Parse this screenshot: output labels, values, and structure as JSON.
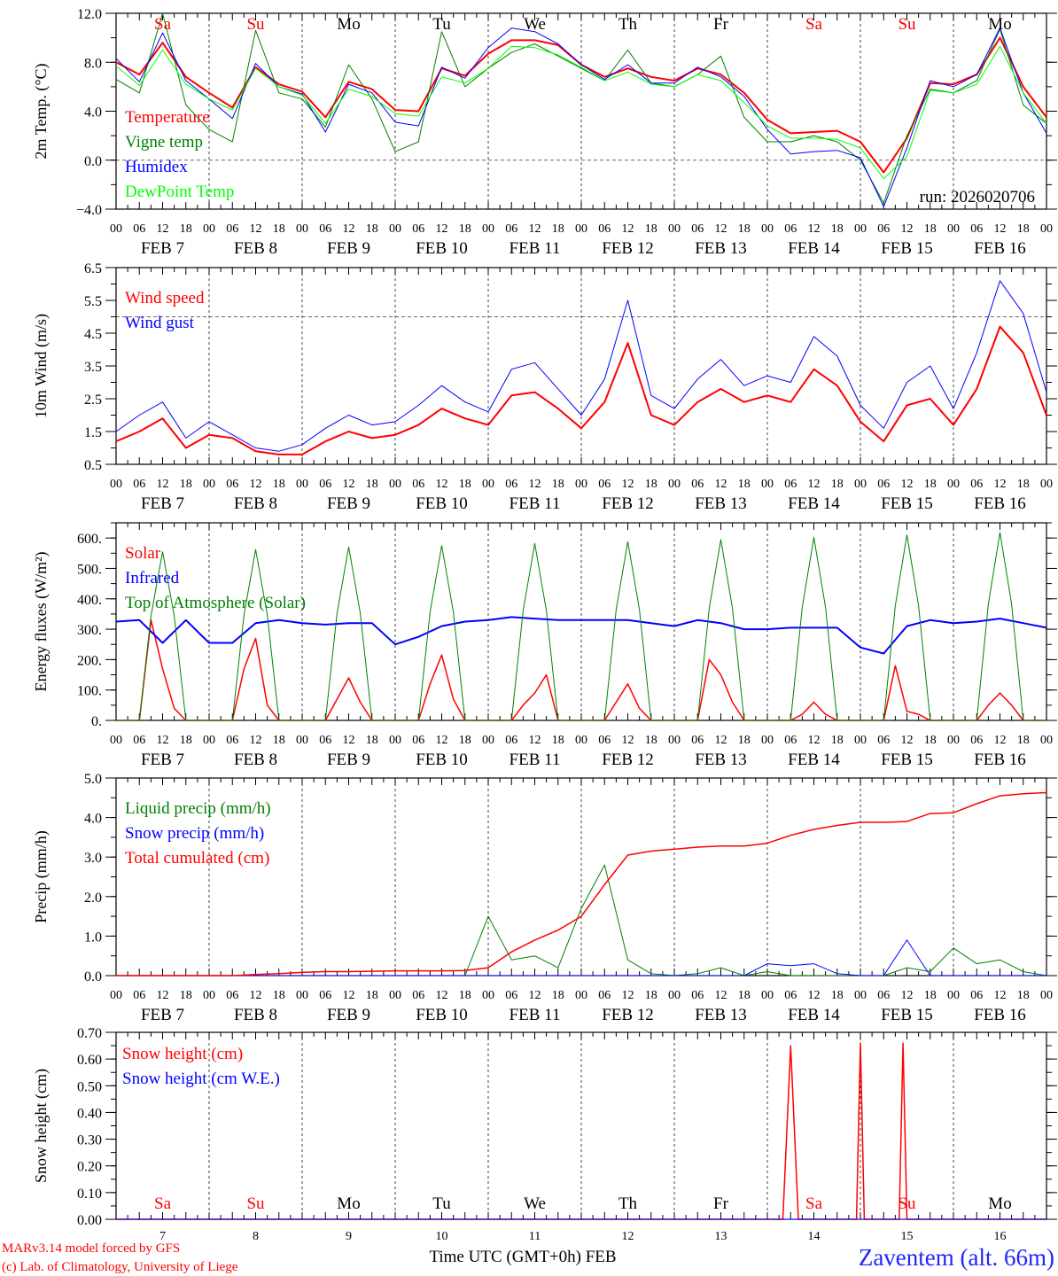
{
  "chart_data": {
    "type": "line",
    "xlabel": "Time UTC (GMT+0h) FEB",
    "x_unit": "hours since FEB 7 00 UTC",
    "xlim": [
      0,
      240
    ],
    "days": [
      "7",
      "8",
      "9",
      "10",
      "11",
      "12",
      "13",
      "14",
      "15",
      "16"
    ],
    "day_labels": [
      "FEB  7",
      "FEB  8",
      "FEB  9",
      "FEB 10",
      "FEB 11",
      "FEB 12",
      "FEB 13",
      "FEB 14",
      "FEB 15",
      "FEB 16"
    ],
    "hour_labels": [
      "00",
      "06",
      "12",
      "18"
    ],
    "weekdays": [
      "Sa",
      "Su",
      "Mo",
      "Tu",
      "We",
      "Th",
      "Fr",
      "Sa",
      "Su",
      "Mo"
    ],
    "weekend_color": "#ff0000",
    "run_label": "run: 2026020706",
    "panels": [
      {
        "ylabel": "2m Temp. (°C)",
        "ylim": [
          -4,
          12
        ],
        "yticks": [
          12,
          8,
          4,
          0,
          -4
        ],
        "ytick_labels": [
          "12.0",
          "8.0",
          "4.0",
          "0.0",
          "−4.0"
        ],
        "minor_step": 2,
        "hlines": [
          0
        ],
        "series": [
          {
            "name": "Temperature",
            "color": "#ff0000",
            "width": 2,
            "x0": 0,
            "step": 6,
            "values": [
              8.0,
              7.0,
              9.6,
              6.8,
              5.5,
              4.3,
              7.6,
              6.2,
              5.6,
              3.5,
              6.4,
              5.8,
              4.1,
              4.0,
              7.5,
              6.9,
              8.7,
              9.8,
              9.8,
              9.4,
              7.8,
              6.8,
              7.5,
              6.8,
              6.5,
              7.5,
              7.0,
              5.5,
              3.3,
              2.2,
              2.3,
              2.4,
              1.5,
              -1.0,
              1.8,
              6.3,
              6.2,
              7.0,
              10.0,
              6.0,
              3.5
            ]
          },
          {
            "name": "Vigne temp",
            "color": "#008000",
            "width": 1,
            "x0": 0,
            "step": 6,
            "values": [
              6.6,
              5.5,
              12.0,
              4.5,
              2.5,
              1.5,
              10.6,
              5.5,
              5.0,
              2.7,
              7.8,
              5.0,
              0.7,
              1.5,
              10.5,
              6.0,
              7.5,
              8.8,
              9.5,
              8.5,
              7.5,
              6.5,
              9.0,
              6.3,
              6.0,
              7.0,
              8.5,
              3.5,
              1.5,
              1.5,
              2.0,
              1.5,
              0.0,
              -3.5,
              2.0,
              5.8,
              5.5,
              6.5,
              10.7,
              4.5,
              3.0
            ]
          },
          {
            "name": "Humidex",
            "color": "#0000ff",
            "width": 1,
            "x0": 0,
            "step": 6,
            "values": [
              8.3,
              6.4,
              10.4,
              6.5,
              5.0,
              3.4,
              7.9,
              6.0,
              5.4,
              2.3,
              6.2,
              5.5,
              3.1,
              2.8,
              7.6,
              6.7,
              9.2,
              10.8,
              10.5,
              9.5,
              7.8,
              6.6,
              7.8,
              6.3,
              6.3,
              7.6,
              6.8,
              5.2,
              2.5,
              0.5,
              0.7,
              0.8,
              0.2,
              -3.8,
              1.0,
              6.5,
              6.0,
              7.0,
              10.8,
              5.5,
              2.2
            ]
          },
          {
            "name": "DewPoint Temp",
            "color": "#00ff00",
            "width": 1,
            "x0": 0,
            "step": 6,
            "values": [
              7.7,
              6.1,
              9.0,
              6.2,
              5.0,
              4.1,
              7.5,
              6.0,
              5.3,
              3.0,
              5.8,
              5.2,
              3.8,
              3.6,
              6.8,
              6.3,
              7.5,
              9.3,
              9.2,
              8.6,
              7.6,
              6.5,
              7.2,
              6.2,
              6.0,
              7.0,
              6.5,
              4.7,
              2.8,
              1.8,
              1.8,
              1.7,
              1.0,
              -1.5,
              0.3,
              5.7,
              5.5,
              6.2,
              9.3,
              5.5,
              3.0
            ]
          }
        ]
      },
      {
        "ylabel": "10m Wind (m/s)",
        "ylim": [
          0.5,
          6.5
        ],
        "yticks": [
          6.5,
          5.5,
          4.5,
          3.5,
          2.5,
          1.5,
          0.5
        ],
        "ytick_labels": [
          "6.5",
          "5.5",
          "4.5",
          "3.5",
          "2.5",
          "1.5",
          "0.5"
        ],
        "minor_step": 0.5,
        "hlines": [
          5.0
        ],
        "series": [
          {
            "name": "Wind speed",
            "color": "#ff0000",
            "width": 2,
            "x0": 0,
            "step": 6,
            "values": [
              1.2,
              1.5,
              1.9,
              1.0,
              1.4,
              1.3,
              0.9,
              0.8,
              0.8,
              1.2,
              1.5,
              1.3,
              1.4,
              1.7,
              2.2,
              1.9,
              1.7,
              2.6,
              2.7,
              2.2,
              1.6,
              2.4,
              4.2,
              2.0,
              1.7,
              2.4,
              2.8,
              2.4,
              2.6,
              2.4,
              3.4,
              2.9,
              1.8,
              1.2,
              2.3,
              2.5,
              1.7,
              2.8,
              4.7,
              3.9,
              2.0
            ]
          },
          {
            "name": "Wind gust",
            "color": "#0000ff",
            "width": 1,
            "x0": 0,
            "step": 6,
            "values": [
              1.5,
              2.0,
              2.4,
              1.3,
              1.8,
              1.4,
              1.0,
              0.9,
              1.1,
              1.6,
              2.0,
              1.7,
              1.8,
              2.3,
              2.9,
              2.4,
              2.1,
              3.4,
              3.6,
              2.8,
              2.0,
              3.1,
              5.5,
              2.6,
              2.2,
              3.1,
              3.7,
              2.9,
              3.2,
              3.0,
              4.4,
              3.8,
              2.3,
              1.6,
              3.0,
              3.5,
              2.2,
              3.9,
              6.1,
              5.1,
              2.7
            ]
          }
        ]
      },
      {
        "ylabel": "Energy fluxes (W/m²)",
        "ylim": [
          0,
          650
        ],
        "yticks": [
          600,
          500,
          400,
          300,
          200,
          100,
          0
        ],
        "ytick_labels": [
          "600.",
          "500.",
          "400.",
          "300.",
          "200.",
          "100.",
          "0."
        ],
        "minor_step": 50,
        "hlines": [],
        "series": [
          {
            "name": "Solar",
            "color": "#ff0000",
            "width": 1.5,
            "x0": 0,
            "step": 3,
            "values": [
              0,
              0,
              0,
              330,
              170,
              40,
              0,
              0,
              0,
              0,
              0,
              170,
              270,
              50,
              0,
              0,
              0,
              0,
              0,
              70,
              140,
              60,
              0,
              0,
              0,
              0,
              0,
              120,
              215,
              70,
              0,
              0,
              0,
              0,
              0,
              50,
              90,
              150,
              0,
              0,
              0,
              0,
              0,
              60,
              120,
              40,
              0,
              0,
              0,
              0,
              0,
              200,
              150,
              60,
              0,
              0,
              0,
              0,
              0,
              20,
              60,
              20,
              0,
              0,
              0,
              0,
              0,
              180,
              30,
              20,
              0,
              0,
              0,
              0,
              0,
              50,
              90,
              50,
              0,
              0,
              0
            ]
          },
          {
            "name": "Infrared",
            "color": "#0000ff",
            "width": 2,
            "x0": 0,
            "step": 6,
            "values": [
              325,
              330,
              255,
              330,
              255,
              255,
              320,
              330,
              320,
              315,
              320,
              320,
              250,
              275,
              310,
              325,
              330,
              340,
              335,
              330,
              330,
              330,
              330,
              320,
              310,
              330,
              320,
              300,
              300,
              305,
              305,
              305,
              240,
              220,
              310,
              330,
              320,
              325,
              335,
              320,
              305
            ]
          },
          {
            "name": "Top of Atmosphere (Solar)",
            "color": "#008000",
            "width": 1,
            "x0": 0,
            "step": 3,
            "values": [
              0,
              0,
              0,
              344,
              555,
              344,
              0,
              0,
              0,
              0,
              0,
              348,
              562,
              348,
              0,
              0,
              0,
              0,
              0,
              353,
              570,
              353,
              0,
              0,
              0,
              0,
              0,
              357,
              575,
              357,
              0,
              0,
              0,
              0,
              0,
              361,
              582,
              361,
              0,
              0,
              0,
              0,
              0,
              365,
              588,
              365,
              0,
              0,
              0,
              0,
              0,
              369,
              595,
              369,
              0,
              0,
              0,
              0,
              0,
              373,
              602,
              373,
              0,
              0,
              0,
              0,
              0,
              378,
              610,
              378,
              0,
              0,
              0,
              0,
              0,
              383,
              618,
              383,
              0,
              0,
              0
            ]
          }
        ]
      },
      {
        "ylabel": "Precip (mm/h)",
        "ylim": [
          0,
          5
        ],
        "yticks": [
          5,
          4,
          3,
          2,
          1,
          0
        ],
        "ytick_labels": [
          "5.0",
          "4.0",
          "3.0",
          "2.0",
          "1.0",
          "0.0"
        ],
        "minor_step": 0.5,
        "hlines": [],
        "series": [
          {
            "name": "Liquid precip (mm/h)",
            "color": "#008000",
            "width": 1,
            "x0": 0,
            "step": 6,
            "values": [
              0,
              0,
              0,
              0,
              0,
              0,
              0,
              0,
              0,
              0,
              0,
              0,
              0,
              0,
              0,
              0,
              1.5,
              0.4,
              0.5,
              0.2,
              1.7,
              2.8,
              0.4,
              0.05,
              0,
              0.05,
              0.2,
              0,
              0.1,
              0,
              0,
              0,
              0,
              0,
              0.2,
              0.1,
              0.7,
              0.3,
              0.4,
              0.1,
              0
            ]
          },
          {
            "name": "Snow precip (mm/h)",
            "color": "#0000ff",
            "width": 1,
            "x0": 0,
            "step": 6,
            "values": [
              0,
              0,
              0,
              0,
              0,
              0,
              0,
              0,
              0,
              0,
              0,
              0,
              0,
              0,
              0,
              0,
              0,
              0,
              0,
              0,
              0,
              0,
              0,
              0,
              0,
              0,
              0,
              0,
              0.3,
              0.25,
              0.3,
              0.05,
              0,
              0,
              0.9,
              0,
              0,
              0,
              0,
              0,
              0
            ]
          },
          {
            "name": "Total cumulated (cm)",
            "color": "#ff0000",
            "width": 1.5,
            "x0": 0,
            "step": 6,
            "values": [
              0,
              0,
              0,
              0,
              0,
              0,
              0.03,
              0.05,
              0.08,
              0.1,
              0.1,
              0.11,
              0.12,
              0.12,
              0.12,
              0.13,
              0.2,
              0.6,
              0.9,
              1.15,
              1.5,
              2.3,
              3.05,
              3.15,
              3.2,
              3.25,
              3.28,
              3.28,
              3.35,
              3.55,
              3.7,
              3.8,
              3.88,
              3.88,
              3.9,
              4.1,
              4.12,
              4.35,
              4.55,
              4.6,
              4.63
            ]
          }
        ]
      },
      {
        "ylabel": "Snow height (cm)",
        "ylim": [
          0,
          0.7
        ],
        "yticks": [
          0.7,
          0.6,
          0.5,
          0.4,
          0.3,
          0.2,
          0.1,
          0
        ],
        "ytick_labels": [
          "0.70",
          "0.60",
          "0.50",
          "0.40",
          "0.30",
          "0.20",
          "0.10",
          "0.00"
        ],
        "minor_step": 0.05,
        "hlines": [],
        "series": [
          {
            "name": "Snow height (cm)",
            "color": "#ff0000",
            "width": 1.5,
            "points": [
              [
                0,
                0
              ],
              [
                172,
                0
              ],
              [
                174,
                0.65
              ],
              [
                176,
                0
              ],
              [
                191,
                0
              ],
              [
                192,
                0.66
              ],
              [
                193,
                0
              ],
              [
                202,
                0
              ],
              [
                203,
                0.66
              ],
              [
                204,
                0
              ],
              [
                240,
                0
              ]
            ]
          },
          {
            "name": "Snow height (cm W.E.)",
            "color": "#0000ff",
            "width": 1,
            "points": [
              [
                0,
                0
              ],
              [
                240,
                0
              ]
            ]
          }
        ]
      }
    ]
  },
  "footer": {
    "credit_1": "MARv3.14 model forced by GFS",
    "credit_2": "(c) Lab. of Climatology, University of Liege",
    "station": "Zaventem (alt. 66m)"
  }
}
